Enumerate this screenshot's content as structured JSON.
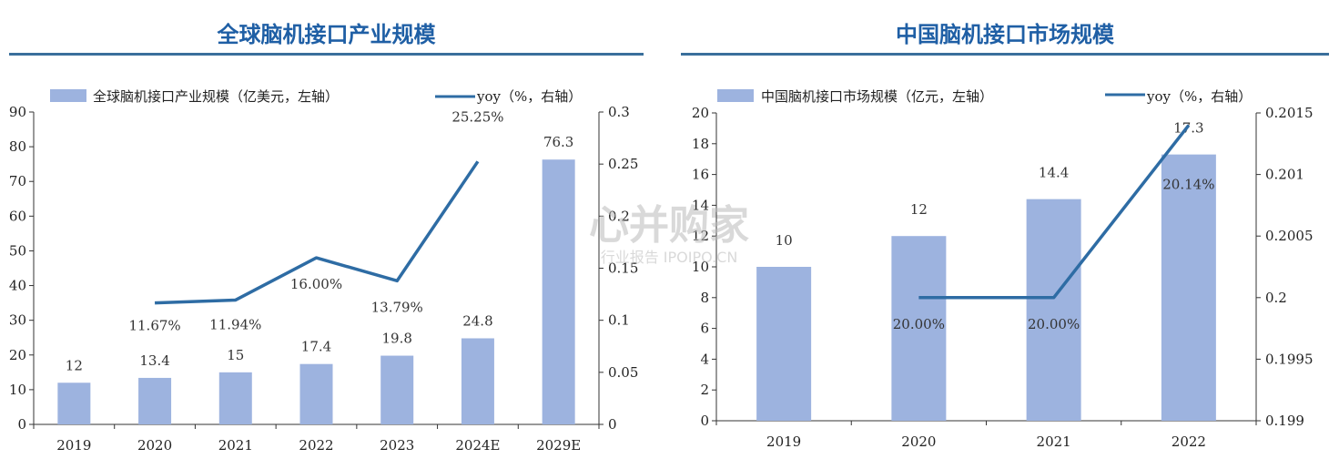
{
  "left": {
    "title": "全球脑机接口产业规模",
    "legend_bar": "全球脑机接口产业规模（亿美元，左轴）",
    "legend_line": "yoy（%，右轴）"
  },
  "right": {
    "title": "中国脑机接口市场规模",
    "legend_bar": "中国脑机接口市场规模（亿元，左轴）",
    "legend_line": "yoy（%，右轴）"
  },
  "watermark": {
    "main": "心并购家",
    "sub": "行业报告 IPOIPO.CN"
  },
  "colors": {
    "bar": "#9db3df",
    "line": "#2e6ca4",
    "title": "#1f5fa5",
    "rule": "#3a6f9c"
  },
  "chart_data": [
    {
      "type": "bar",
      "categories": [
        "2019",
        "2020",
        "2021",
        "2022",
        "2023",
        "2024E",
        "2029E"
      ],
      "series": [
        {
          "name": "全球脑机接口产业规模（亿美元，左轴）",
          "axis": "left",
          "values": [
            12,
            13.4,
            15,
            17.4,
            19.8,
            24.8,
            76.3
          ],
          "labels": [
            "12",
            "13.4",
            "15",
            "17.4",
            "19.8",
            "24.8",
            "76.3"
          ]
        },
        {
          "name": "yoy（%，右轴）",
          "axis": "right",
          "type": "line",
          "values": [
            null,
            0.1167,
            0.1194,
            0.16,
            0.1379,
            0.2525,
            null
          ],
          "labels": [
            "",
            "11.67%",
            "11.94%",
            "16.00%",
            "13.79%",
            "25.25%",
            ""
          ]
        }
      ],
      "y_left": {
        "min": 0,
        "max": 90,
        "ticks": [
          "0",
          "10",
          "20",
          "30",
          "40",
          "50",
          "60",
          "70",
          "80",
          "90"
        ]
      },
      "y_right": {
        "min": 0,
        "max": 0.3,
        "ticks": [
          "0",
          "0.05",
          "0.1",
          "0.15",
          "0.2",
          "0.25",
          "0.3"
        ]
      },
      "grid": false,
      "legend": "top"
    },
    {
      "type": "bar",
      "categories": [
        "2019",
        "2020",
        "2021",
        "2022"
      ],
      "series": [
        {
          "name": "中国脑机接口市场规模（亿元，左轴）",
          "axis": "left",
          "values": [
            10,
            12,
            14.4,
            17.3
          ],
          "labels": [
            "10",
            "12",
            "14.4",
            "17.3"
          ]
        },
        {
          "name": "yoy（%，右轴）",
          "axis": "right",
          "type": "line",
          "values": [
            null,
            0.2,
            0.2,
            0.2014
          ],
          "labels": [
            "",
            "20.00%",
            "20.00%",
            "20.14%"
          ]
        }
      ],
      "y_left": {
        "min": 0,
        "max": 20,
        "ticks": [
          "0",
          "2",
          "4",
          "6",
          "8",
          "10",
          "12",
          "14",
          "16",
          "18",
          "20"
        ]
      },
      "y_right": {
        "min": 0.199,
        "max": 0.2015,
        "ticks": [
          "0.199",
          "0.1995",
          "0.2",
          "0.2005",
          "0.201",
          "0.2015"
        ]
      },
      "grid": false,
      "legend": "top"
    }
  ]
}
